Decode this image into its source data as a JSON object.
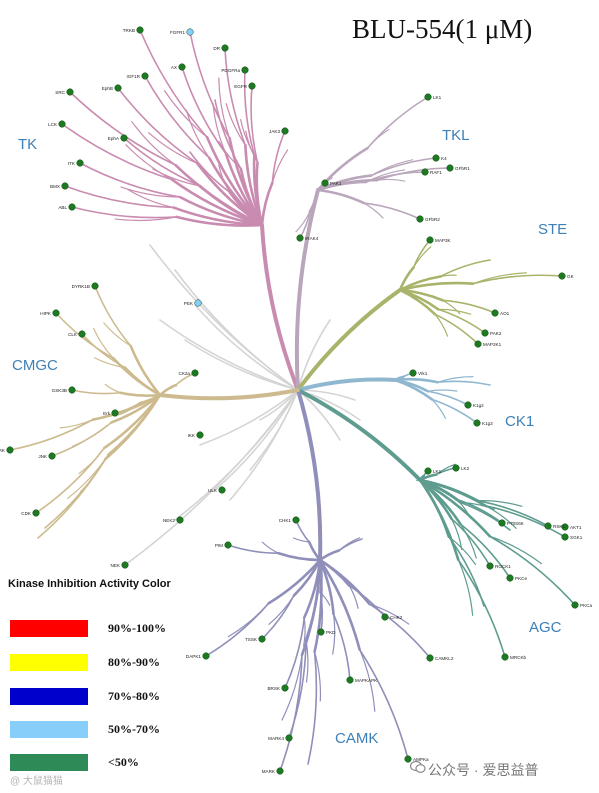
{
  "title": "BLU-554(1 μM)",
  "groups": [
    {
      "name": "TK",
      "color": "#c98bb0"
    },
    {
      "name": "TKL",
      "color": "#b9a6bb"
    },
    {
      "name": "STE",
      "color": "#a9b36a"
    },
    {
      "name": "CK1",
      "color": "#8fb7cf"
    },
    {
      "name": "AGC",
      "color": "#5e9c8f"
    },
    {
      "name": "CAMK",
      "color": "#8f8fba"
    },
    {
      "name": "CMGC",
      "color": "#cdbb8f"
    }
  ],
  "kinases": [
    {
      "name": "TRKB",
      "color": "green"
    },
    {
      "name": "FGFR1",
      "color": "lightblue"
    },
    {
      "name": "DR",
      "color": "green"
    },
    {
      "name": "AX",
      "color": "green"
    },
    {
      "name": "PDGFRa",
      "color": "green"
    },
    {
      "name": "IGF1R",
      "color": "green"
    },
    {
      "name": "EGFR",
      "color": "green"
    },
    {
      "name": "SRC",
      "color": "green"
    },
    {
      "name": "EphB",
      "color": "green"
    },
    {
      "name": "LCK",
      "color": "green"
    },
    {
      "name": "EphA",
      "color": "green"
    },
    {
      "name": "JAK3",
      "color": "green"
    },
    {
      "name": "ITK",
      "color": "green"
    },
    {
      "name": "BMX",
      "color": "green"
    },
    {
      "name": "ABL",
      "color": "green"
    },
    {
      "name": "LK1",
      "color": "green"
    },
    {
      "name": "K4",
      "color": "green"
    },
    {
      "name": "GFbR1",
      "color": "green"
    },
    {
      "name": "RAF1",
      "color": "green"
    },
    {
      "name": "GFbR2",
      "color": "green"
    },
    {
      "name": "IRAK4",
      "color": "green"
    },
    {
      "name": "MAP3K",
      "color": "green"
    },
    {
      "name": "PAK1",
      "color": "green"
    },
    {
      "name": "GK",
      "color": "green"
    },
    {
      "name": "AO1",
      "color": "green"
    },
    {
      "name": "PAK2",
      "color": "green"
    },
    {
      "name": "MAP2K1",
      "color": "green"
    },
    {
      "name": "PEK",
      "color": "lightblue"
    },
    {
      "name": "DYRK1B",
      "color": "green"
    },
    {
      "name": "HIPK",
      "color": "green"
    },
    {
      "name": "CLK",
      "color": "green"
    },
    {
      "name": "CK2a",
      "color": "green"
    },
    {
      "name": "GSK3B",
      "color": "green"
    },
    {
      "name": "Erk",
      "color": "green"
    },
    {
      "name": "ERK",
      "color": "green"
    },
    {
      "name": "JNK",
      "color": "green"
    },
    {
      "name": "CDK",
      "color": "green"
    },
    {
      "name": "IKK",
      "color": "green"
    },
    {
      "name": "Vrk1",
      "color": "green"
    },
    {
      "name": "K1g2",
      "color": "green"
    },
    {
      "name": "K1g3",
      "color": "green"
    },
    {
      "name": "LK1",
      "color": "green"
    },
    {
      "name": "LK2",
      "color": "green"
    },
    {
      "name": "ULK",
      "color": "green"
    },
    {
      "name": "NEK2",
      "color": "green"
    },
    {
      "name": "NEK",
      "color": "green"
    },
    {
      "name": "CHK1",
      "color": "green"
    },
    {
      "name": "PIM",
      "color": "green"
    },
    {
      "name": "P70S6K",
      "color": "green"
    },
    {
      "name": "RSK1",
      "color": "green"
    },
    {
      "name": "AKT1",
      "color": "green"
    },
    {
      "name": "SGK1",
      "color": "green"
    },
    {
      "name": "PKCa",
      "color": "green"
    },
    {
      "name": "ROCK1",
      "color": "green"
    },
    {
      "name": "PKCe",
      "color": "green"
    },
    {
      "name": "MRCKb",
      "color": "green"
    },
    {
      "name": "TSSK",
      "color": "green"
    },
    {
      "name": "PKD",
      "color": "green"
    },
    {
      "name": "CHK2",
      "color": "green"
    },
    {
      "name": "DAPK1",
      "color": "green"
    },
    {
      "name": "CAMKL2",
      "color": "green"
    },
    {
      "name": "BRSK",
      "color": "green"
    },
    {
      "name": "MAPKAPK",
      "color": "green"
    },
    {
      "name": "MARK4",
      "color": "green"
    },
    {
      "name": "MARK",
      "color": "green"
    },
    {
      "name": "AMPKa",
      "color": "green"
    }
  ],
  "legend": {
    "title": "Kinase Inhibition Activity Color",
    "items": [
      {
        "label": "90%-100%",
        "color": "#ff0000"
      },
      {
        "label": "80%-90%",
        "color": "#ffff00"
      },
      {
        "label": "70%-80%",
        "color": "#0000ff"
      },
      {
        "label": "50%-70%",
        "color": "#87cefa"
      },
      {
        "label": "<50%",
        "color": "#2e8b57"
      }
    ]
  },
  "watermarks": {
    "left": "@ 大鼠猫猫",
    "right": "公众号 · 爱思益普"
  }
}
